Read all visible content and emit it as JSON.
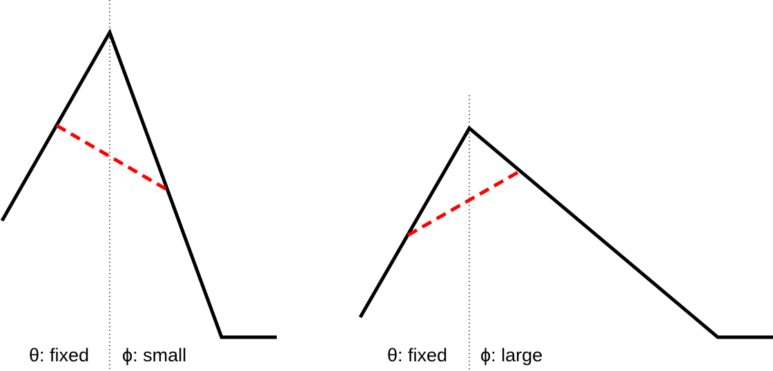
{
  "panels": [
    {
      "theta_label": "θ: fixed",
      "phi_label": "ϕ: small"
    },
    {
      "theta_label": "θ: fixed",
      "phi_label": "ϕ: large"
    }
  ],
  "colors": {
    "outline": "#000000",
    "chord": "#ff0000",
    "axis": "#000000",
    "background": "#ffffff"
  }
}
